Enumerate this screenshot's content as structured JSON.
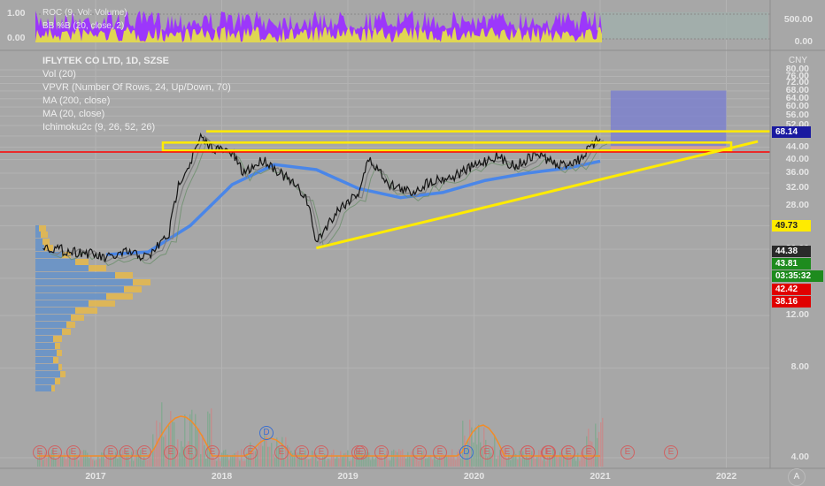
{
  "colors": {
    "background": "#a7a7a7",
    "grid": "#b3b3b3",
    "candle": "#141414",
    "ma200": "#4a86e8",
    "ma20": "#7e7e7e",
    "support_resistance": "#ffeb00",
    "red_line": "#ff0000",
    "target_box": "#7b7fd0",
    "stop_box": "#e0a090",
    "vol_up": "#7fa98f",
    "vol_down": "#c98a8a",
    "vpvr_up": "#5b8fd8",
    "vpvr_down": "#e6b84a",
    "roc": "#9b30ff",
    "bb": "#e8e840"
  },
  "top_panel": {
    "legend_roc": "ROC (9, Vol: Volume)",
    "legend_bb": "BB %B (20, close, 2)",
    "left_ticks": [
      "1.00",
      "0.00"
    ],
    "right_ticks": [
      "500.00",
      "0.00"
    ]
  },
  "main_panel": {
    "title": "IFLYTEK CO LTD, 1D, SZSE",
    "indicators": [
      "Vol (20)",
      "VPVR (Number Of Rows, 24, Up/Down, 70)",
      "MA (200, close)",
      "MA (20, close)",
      "Ichimoku2c (9, 26, 52, 26)"
    ],
    "currency": "CNY",
    "countdown": "03:35:32",
    "scale_icon": "A",
    "price_tags": [
      {
        "value": "68.14",
        "color": "#1a1aa0"
      },
      {
        "value": "49.73",
        "color": "#ffeb00"
      },
      {
        "value": "44.38",
        "color": "#2a2a2a"
      },
      {
        "value": "43.81",
        "color": "#1e8b1e"
      },
      {
        "value": "42.42",
        "color": "#e00000"
      },
      {
        "value": "38.16",
        "color": "#e00000"
      }
    ]
  },
  "event_markers": [
    "E",
    "E",
    "E",
    "E",
    "E",
    "E",
    "E",
    "E",
    "E",
    "E",
    "E",
    "E",
    "E",
    "E",
    "E",
    "E",
    "E",
    "D",
    "E",
    "E",
    "E",
    "E",
    "E",
    "E",
    "E",
    "E",
    "D",
    "E",
    "E",
    "E",
    "E"
  ],
  "chart_data": {
    "type": "line",
    "title": "IFLYTEK CO LTD, 1D, SZSE",
    "xlabel": "",
    "ylabel": "",
    "x_ticks": [
      "2017",
      "2018",
      "2019",
      "2020",
      "2021",
      "2022"
    ],
    "y_ticks": [
      4,
      8,
      12,
      16,
      20,
      24,
      28,
      32,
      36,
      40,
      44,
      48,
      52,
      56,
      60,
      64,
      68,
      72,
      76,
      80
    ],
    "ylim": [
      3.5,
      82
    ],
    "scale": "log",
    "grid": true,
    "series": [
      {
        "name": "Price",
        "x": [
          "2016-08",
          "2016-10",
          "2016-12",
          "2017-02",
          "2017-04",
          "2017-06",
          "2017-08",
          "2017-09",
          "2017-10",
          "2017-11",
          "2017-12",
          "2018-02",
          "2018-03",
          "2018-05",
          "2018-07",
          "2018-09",
          "2018-10",
          "2018-12",
          "2019-02",
          "2019-03",
          "2019-05",
          "2019-07",
          "2019-09",
          "2019-11",
          "2020-01",
          "2020-03",
          "2020-05",
          "2020-07",
          "2020-09",
          "2020-11",
          "2021-01"
        ],
        "values": [
          20.5,
          19.8,
          19.5,
          18.6,
          19.5,
          18.8,
          22.5,
          34,
          39,
          47,
          44,
          42,
          36,
          40,
          35,
          30,
          21,
          27,
          31,
          40,
          33,
          31,
          34,
          35,
          38,
          41,
          38,
          42,
          38,
          40,
          47
        ]
      },
      {
        "name": "MA (200, close)",
        "x": [
          "2017-02",
          "2017-06",
          "2017-10",
          "2018-02",
          "2018-06",
          "2018-10",
          "2019-02",
          "2019-06",
          "2019-10",
          "2020-02",
          "2020-06",
          "2020-10",
          "2021-01"
        ],
        "values": [
          19.2,
          19.6,
          24,
          33,
          38.5,
          37,
          32,
          29.8,
          31,
          34,
          36,
          37.5,
          39.5
        ]
      }
    ],
    "levels": [
      {
        "value": 49.73
      },
      {
        "value": 44.38
      },
      {
        "value": 42.42
      }
    ],
    "target_box": {
      "x_start": "2021-02",
      "x_end": "2022-01",
      "top": 68.14,
      "bottom": 44.38
    },
    "stop_box": {
      "x_start": "2021-02",
      "x_end": "2022-01",
      "top": 44.38,
      "bottom": 43.2
    },
    "trendline": {
      "x_start": "2018-10",
      "y_start": 20.2,
      "x_end": "2022-04",
      "y_end": 46
    }
  }
}
